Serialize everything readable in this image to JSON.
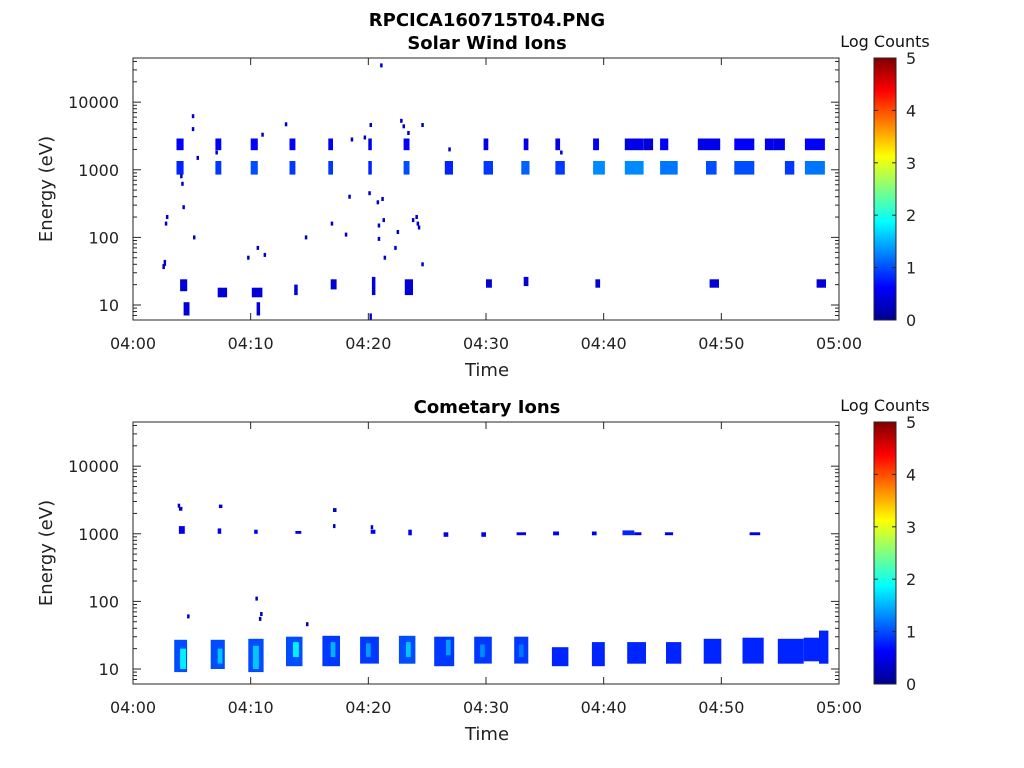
{
  "figure_title": "RPCICA160715T04.PNG",
  "colormap": [
    "#00008f",
    "#0000ff",
    "#0080ff",
    "#00ffff",
    "#80ff80",
    "#ffff00",
    "#ff8000",
    "#ff0000",
    "#800000"
  ],
  "chart_data": [
    {
      "type": "heatmap",
      "title": "Solar Wind Ions",
      "xlabel": "Time",
      "ylabel": "Energy (eV)",
      "yscale": "log",
      "xlim": [
        "04:00",
        "05:00"
      ],
      "ylim": [
        6,
        45000
      ],
      "xticks": [
        "04:00",
        "04:10",
        "04:20",
        "04:30",
        "04:40",
        "04:50",
        "05:00"
      ],
      "yticks": [
        {
          "value": 10,
          "label": "10"
        },
        {
          "value": 100,
          "label": "100"
        },
        {
          "value": 1000,
          "label": "1000"
        },
        {
          "value": 10000,
          "label": "10000"
        }
      ],
      "colorbar": {
        "label": "Log Counts",
        "ticks": [
          0,
          1,
          2,
          3,
          4,
          5
        ],
        "range": [
          0,
          5
        ]
      },
      "cells_columns": [
        "time_min_start",
        "time_min_end",
        "energy_eV_low",
        "energy_eV_high",
        "log_counts"
      ],
      "cells": [
        [
          3.7,
          4.3,
          1950,
          2900,
          0.6
        ],
        [
          3.7,
          4.3,
          850,
          1350,
          0.8
        ],
        [
          7.0,
          7.5,
          1950,
          2900,
          0.6
        ],
        [
          7.0,
          7.5,
          850,
          1350,
          0.9
        ],
        [
          10.0,
          10.6,
          1950,
          2900,
          0.6
        ],
        [
          10.0,
          10.6,
          850,
          1350,
          1.0
        ],
        [
          13.3,
          13.8,
          1950,
          2900,
          0.6
        ],
        [
          13.3,
          13.8,
          850,
          1350,
          0.9
        ],
        [
          16.6,
          17.0,
          1950,
          2900,
          0.6
        ],
        [
          16.6,
          17.0,
          850,
          1350,
          0.9
        ],
        [
          20.0,
          20.3,
          1950,
          2900,
          0.5
        ],
        [
          20.0,
          20.3,
          850,
          1350,
          0.8
        ],
        [
          23.0,
          23.5,
          1950,
          2900,
          0.6
        ],
        [
          23.0,
          23.5,
          850,
          1350,
          1.0
        ],
        [
          26.5,
          27.2,
          850,
          1350,
          0.8
        ],
        [
          29.8,
          30.2,
          1950,
          2900,
          0.5
        ],
        [
          29.8,
          30.6,
          850,
          1350,
          0.9
        ],
        [
          33.2,
          33.6,
          1950,
          2900,
          0.5
        ],
        [
          33.0,
          33.7,
          850,
          1350,
          1.1
        ],
        [
          35.9,
          36.3,
          1950,
          2900,
          0.5
        ],
        [
          35.9,
          36.7,
          850,
          1350,
          0.9
        ],
        [
          39.1,
          39.6,
          1950,
          2900,
          0.6
        ],
        [
          39.1,
          40.1,
          850,
          1350,
          1.3
        ],
        [
          41.8,
          43.4,
          1950,
          2900,
          0.5
        ],
        [
          41.8,
          43.4,
          850,
          1350,
          1.3
        ],
        [
          43.4,
          44.2,
          1950,
          2900,
          0.4
        ],
        [
          44.8,
          45.5,
          1950,
          2900,
          0.6
        ],
        [
          44.8,
          46.3,
          850,
          1350,
          1.2
        ],
        [
          48.0,
          49.9,
          1950,
          2900,
          0.5
        ],
        [
          48.7,
          49.6,
          850,
          1350,
          1.0
        ],
        [
          51.1,
          52.8,
          1950,
          2900,
          0.6
        ],
        [
          51.1,
          52.8,
          850,
          1350,
          1.0
        ],
        [
          53.7,
          54.4,
          1950,
          2900,
          0.5
        ],
        [
          54.4,
          55.4,
          1950,
          2900,
          0.5
        ],
        [
          55.4,
          56.2,
          850,
          1350,
          0.9
        ],
        [
          57.1,
          58.8,
          1950,
          2900,
          0.6
        ],
        [
          57.1,
          58.8,
          850,
          1350,
          1.2
        ],
        [
          4.0,
          4.6,
          16,
          24,
          0.4
        ],
        [
          4.3,
          4.8,
          7,
          11,
          0.4
        ],
        [
          7.2,
          8.0,
          13,
          18,
          0.4
        ],
        [
          10.1,
          11.0,
          13,
          18,
          0.4
        ],
        [
          10.5,
          10.8,
          7,
          11,
          0.4
        ],
        [
          13.7,
          14.0,
          14,
          20,
          0.4
        ],
        [
          16.8,
          17.3,
          17,
          24,
          0.4
        ],
        [
          20.3,
          20.6,
          14,
          26,
          0.4
        ],
        [
          20.1,
          20.3,
          6,
          7.5,
          0.4
        ],
        [
          23.1,
          23.8,
          14,
          24,
          0.4
        ],
        [
          30.0,
          30.5,
          18,
          24,
          0.4
        ],
        [
          33.2,
          33.6,
          19,
          26,
          0.4
        ],
        [
          39.3,
          39.7,
          18,
          24,
          0.4
        ],
        [
          49.0,
          49.8,
          18,
          24,
          0.4
        ],
        [
          58.1,
          58.9,
          18,
          24,
          0.4
        ]
      ]
    },
    {
      "type": "heatmap",
      "title": "Cometary Ions",
      "xlabel": "Time",
      "ylabel": "Energy (eV)",
      "yscale": "log",
      "xlim": [
        "04:00",
        "05:00"
      ],
      "ylim": [
        6,
        45000
      ],
      "xticks": [
        "04:00",
        "04:10",
        "04:20",
        "04:30",
        "04:40",
        "04:50",
        "05:00"
      ],
      "yticks": [
        {
          "value": 10,
          "label": "10"
        },
        {
          "value": 100,
          "label": "100"
        },
        {
          "value": 1000,
          "label": "1000"
        },
        {
          "value": 10000,
          "label": "10000"
        }
      ],
      "colorbar": {
        "label": "Log Counts",
        "ticks": [
          0,
          1,
          2,
          3,
          4,
          5
        ],
        "range": [
          0,
          5
        ]
      },
      "cells_columns": [
        "time_min_start",
        "time_min_end",
        "energy_eV_low",
        "energy_eV_high",
        "log_counts"
      ],
      "cells": [
        [
          3.5,
          4.6,
          9,
          27,
          1.0
        ],
        [
          4.0,
          4.5,
          10,
          20,
          1.8
        ],
        [
          6.6,
          7.8,
          10,
          27,
          1.0
        ],
        [
          7.2,
          7.6,
          12,
          20,
          1.6
        ],
        [
          9.8,
          11.1,
          9,
          28,
          1.0
        ],
        [
          10.2,
          10.7,
          10,
          22,
          1.6
        ],
        [
          13.0,
          14.4,
          11,
          30,
          1.0
        ],
        [
          13.6,
          14.1,
          15,
          25,
          1.8
        ],
        [
          16.1,
          17.6,
          11,
          31,
          0.9
        ],
        [
          16.8,
          17.2,
          15,
          25,
          1.5
        ],
        [
          19.3,
          20.9,
          12,
          30,
          0.9
        ],
        [
          19.8,
          20.2,
          15,
          24,
          1.4
        ],
        [
          22.6,
          24.0,
          12,
          31,
          1.0
        ],
        [
          23.2,
          23.6,
          15,
          25,
          1.6
        ],
        [
          25.6,
          27.3,
          11,
          30,
          0.9
        ],
        [
          26.6,
          27.0,
          16,
          27,
          1.4
        ],
        [
          29.0,
          30.5,
          12,
          30,
          0.9
        ],
        [
          29.5,
          29.9,
          15,
          23,
          1.3
        ],
        [
          32.4,
          33.6,
          12,
          30,
          0.9
        ],
        [
          32.8,
          33.2,
          15,
          23,
          1.2
        ],
        [
          35.6,
          37.0,
          11,
          21,
          0.8
        ],
        [
          39.0,
          40.1,
          11,
          25,
          0.8
        ],
        [
          42.0,
          43.6,
          12,
          25,
          0.8
        ],
        [
          45.3,
          46.6,
          12,
          25,
          0.8
        ],
        [
          48.5,
          50.0,
          12,
          28,
          0.8
        ],
        [
          51.8,
          53.6,
          12,
          29,
          0.8
        ],
        [
          54.8,
          57.0,
          12,
          28,
          0.8
        ],
        [
          57.0,
          58.3,
          13,
          29,
          0.8
        ],
        [
          58.3,
          59.1,
          12,
          37,
          0.8
        ],
        [
          3.9,
          4.4,
          1000,
          1300,
          0.5
        ],
        [
          7.2,
          7.5,
          1000,
          1200,
          0.5
        ],
        [
          10.3,
          10.6,
          1000,
          1150,
          0.5
        ],
        [
          13.8,
          14.3,
          1000,
          1100,
          0.5
        ],
        [
          20.2,
          20.6,
          1000,
          1150,
          0.5
        ],
        [
          23.4,
          23.7,
          950,
          1150,
          0.5
        ],
        [
          26.4,
          26.8,
          900,
          1050,
          0.5
        ],
        [
          29.6,
          30.0,
          900,
          1050,
          0.5
        ],
        [
          32.6,
          33.4,
          950,
          1050,
          0.5
        ],
        [
          35.7,
          36.2,
          950,
          1080,
          0.5
        ],
        [
          39.0,
          39.4,
          950,
          1080,
          0.5
        ],
        [
          41.6,
          42.6,
          950,
          1120,
          0.8
        ],
        [
          42.6,
          43.2,
          950,
          1050,
          0.5
        ],
        [
          45.2,
          45.9,
          950,
          1050,
          0.5
        ],
        [
          52.4,
          53.3,
          950,
          1050,
          0.5
        ],
        [
          3.9,
          4.2,
          2200,
          2500,
          0.4
        ],
        [
          7.3,
          7.6,
          2400,
          2700,
          0.4
        ],
        [
          17.0,
          17.3,
          2100,
          2400,
          0.4
        ]
      ]
    }
  ],
  "scatter_points": [
    [
      [
        2.5,
        37,
        5
      ],
      [
        2.6,
        42,
        6
      ],
      [
        2.8,
        200,
        4
      ],
      [
        2.7,
        160,
        4
      ],
      [
        4.0,
        800,
        4
      ],
      [
        4.1,
        620,
        4
      ],
      [
        4.2,
        280,
        4
      ],
      [
        5.1,
        100,
        4
      ],
      [
        5.4,
        1500,
        4
      ],
      [
        5.0,
        4000,
        4
      ],
      [
        5.0,
        6200,
        4
      ],
      [
        7.0,
        1800,
        4
      ],
      [
        9.7,
        50,
        4
      ],
      [
        10.5,
        70,
        4
      ],
      [
        11.1,
        55,
        4
      ],
      [
        10.9,
        3300,
        4
      ],
      [
        12.9,
        4700,
        4
      ],
      [
        14.6,
        100,
        4
      ],
      [
        16.8,
        160,
        4
      ],
      [
        18.0,
        110,
        4
      ],
      [
        18.3,
        400,
        4
      ],
      [
        18.5,
        2800,
        4
      ],
      [
        19.6,
        3000,
        4
      ],
      [
        20.0,
        450,
        4
      ],
      [
        20.1,
        4600,
        4
      ],
      [
        21.0,
        35000,
        4
      ],
      [
        20.7,
        330,
        4
      ],
      [
        21.1,
        370,
        4
      ],
      [
        20.8,
        150,
        4
      ],
      [
        21.2,
        180,
        4
      ],
      [
        20.8,
        95,
        4
      ],
      [
        21.3,
        50,
        4
      ],
      [
        22.2,
        70,
        4
      ],
      [
        22.4,
        120,
        4
      ],
      [
        22.7,
        5300,
        4
      ],
      [
        22.9,
        4400,
        4
      ],
      [
        23.3,
        3500,
        4
      ],
      [
        23.7,
        180,
        4
      ],
      [
        24.0,
        200,
        4
      ],
      [
        24.1,
        160,
        4
      ],
      [
        24.2,
        140,
        4
      ],
      [
        24.5,
        40,
        4
      ],
      [
        24.5,
        4600,
        4
      ],
      [
        26.8,
        2000,
        4
      ],
      [
        36.3,
        1800,
        4
      ]
    ],
    [
      [
        3.8,
        2600,
        4
      ],
      [
        4.6,
        60,
        4
      ],
      [
        10.4,
        110,
        4
      ],
      [
        10.7,
        55,
        4
      ],
      [
        10.8,
        65,
        4
      ],
      [
        14.7,
        46,
        4
      ],
      [
        17.0,
        1300,
        4
      ],
      [
        20.2,
        1250,
        4
      ]
    ]
  ]
}
